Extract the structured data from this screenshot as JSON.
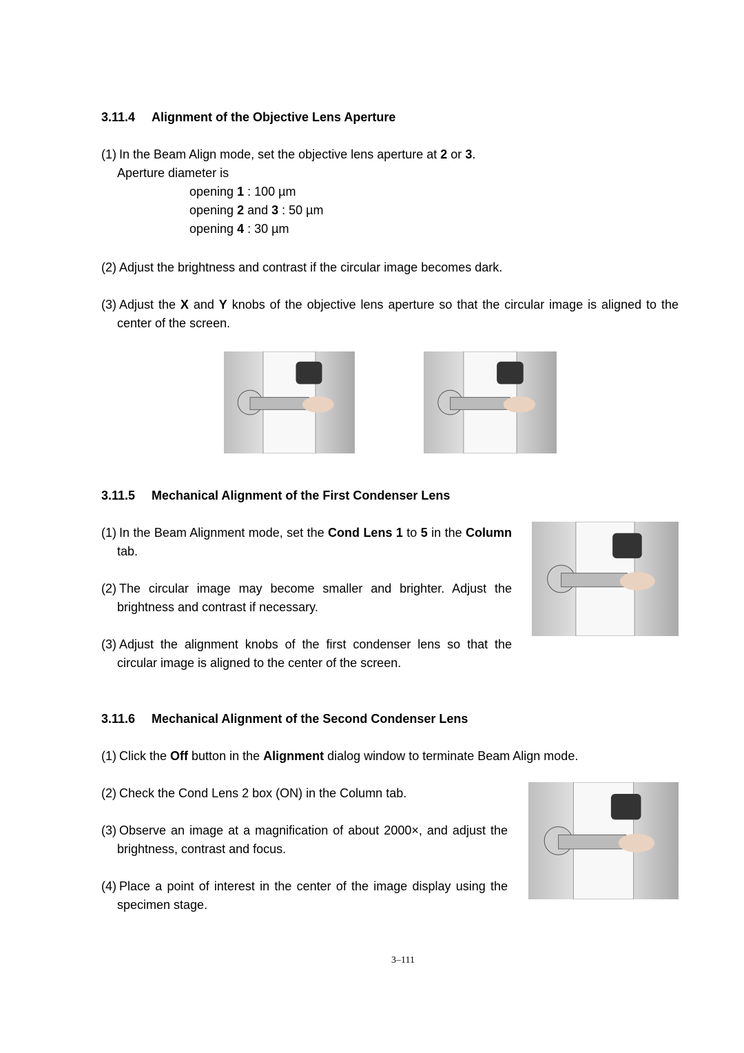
{
  "sections": [
    {
      "number": "3.11.4",
      "title": "Alignment of the Objective Lens Aperture",
      "items": [
        {
          "label": "(1)",
          "text": [
            "In the Beam Align mode, set the objective lens aperture at ",
            "2",
            " or ",
            "3",
            "."
          ],
          "note": "Aperture diameter is",
          "openings": [
            [
              "opening ",
              "1",
              " : 100 µm"
            ],
            [
              "opening ",
              "2",
              " and ",
              "3",
              " : 50 µm"
            ],
            [
              "opening ",
              "4",
              " : 30 µm"
            ]
          ]
        },
        {
          "label": "(2)",
          "text": [
            "Adjust the brightness and contrast if the circular image becomes dark."
          ]
        },
        {
          "label": "(3)",
          "text": [
            "Adjust the ",
            "X",
            " and ",
            "Y",
            " knobs of the objective lens aperture so that the circular image is aligned to the center of the screen."
          ]
        }
      ]
    },
    {
      "number": "3.11.5",
      "title": "Mechanical Alignment of the First Condenser Lens",
      "items": [
        {
          "label": "(1)",
          "text": [
            "In the Beam Alignment mode, set the ",
            "Cond Lens 1",
            " to ",
            "5",
            " in the ",
            "Column",
            " tab."
          ]
        },
        {
          "label": "(2)",
          "text": [
            "The circular image may become smaller and brighter. Adjust the brightness and contrast if necessary."
          ]
        },
        {
          "label": "(3)",
          "text": [
            "Adjust the alignment knobs of the first condenser lens so that the circular image is aligned to the center of the screen."
          ]
        }
      ]
    },
    {
      "number": "3.11.6",
      "title": "Mechanical Alignment of the Second Condenser Lens",
      "items": [
        {
          "label": "(1)",
          "text": [
            "Click the ",
            "Off",
            " button in the ",
            "Alignment",
            " dialog window to terminate Beam Align mode."
          ]
        },
        {
          "label": "(2)",
          "text": [
            "Check the Cond Lens 2 box (ON) in the Column tab."
          ]
        },
        {
          "label": "(3)",
          "text": [
            "Observe an image at a magnification of about 2000×, and adjust the brightness, contrast and focus."
          ]
        },
        {
          "label": "(4)",
          "text": [
            "Place a point of interest in the center of the image display using the specimen stage."
          ]
        }
      ]
    }
  ],
  "page_number": "3–111"
}
